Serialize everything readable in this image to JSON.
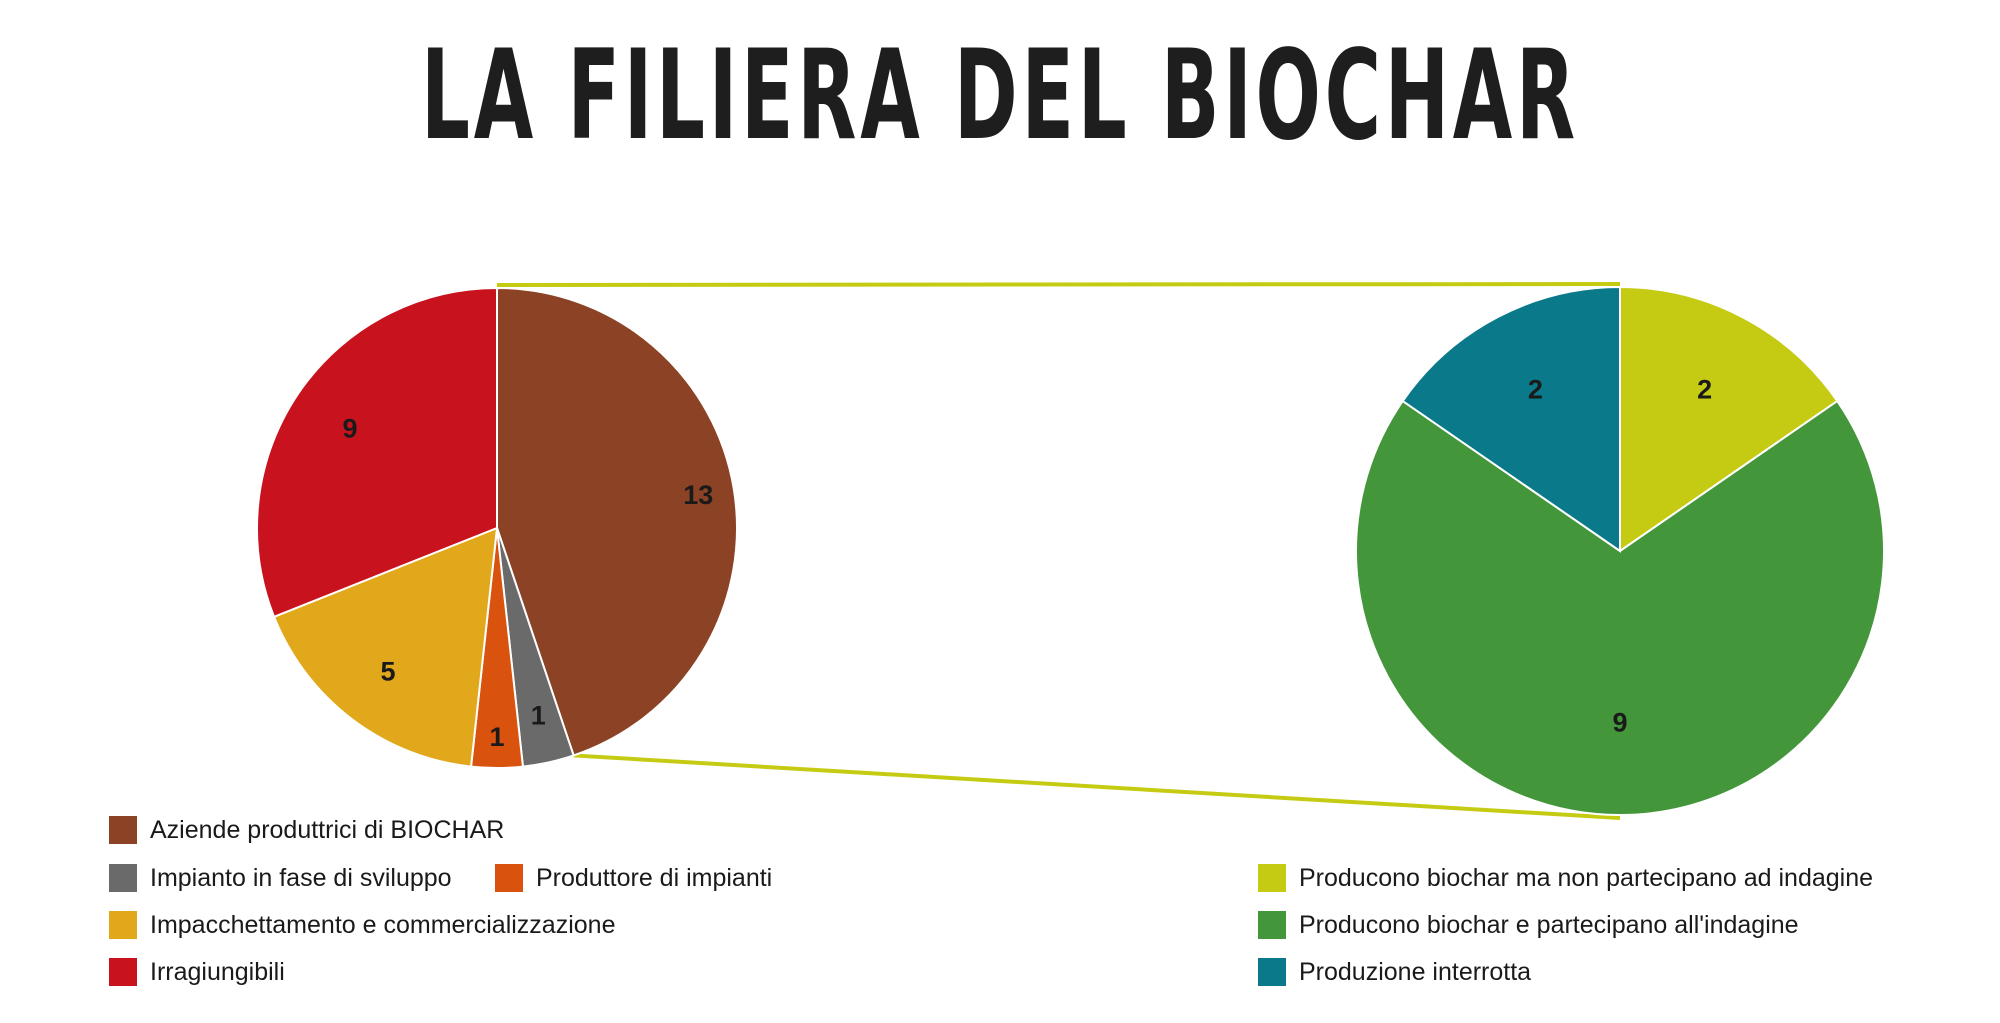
{
  "title": "LA FILIERA DEL BIOCHAR",
  "chart_data": [
    {
      "type": "pie",
      "slices": [
        {
          "label": "Aziende produttrici di BIOCHAR",
          "value": 13,
          "color": "#8B4225"
        },
        {
          "label": "Impianto in fase di sviluppo",
          "value": 1,
          "color": "#6A6A6A"
        },
        {
          "label": "Produttore di impianti",
          "value": 1,
          "color": "#D9530F"
        },
        {
          "label": "Impacchettamento e commercializzazione",
          "value": 5,
          "color": "#E2A81B"
        },
        {
          "label": "Irragiungibili",
          "value": 9,
          "color": "#C8131E"
        }
      ]
    },
    {
      "type": "pie",
      "slices": [
        {
          "label": "Producono biochar ma non partecipano ad indagine",
          "value": 2,
          "color": "#C5CB12"
        },
        {
          "label": "Producono biochar e partecipano all'indagine",
          "value": 9,
          "color": "#43963A"
        },
        {
          "label": "Produzione interrotta",
          "value": 2,
          "color": "#0A7A8A"
        }
      ]
    }
  ],
  "connector_color": "#C5CB12"
}
